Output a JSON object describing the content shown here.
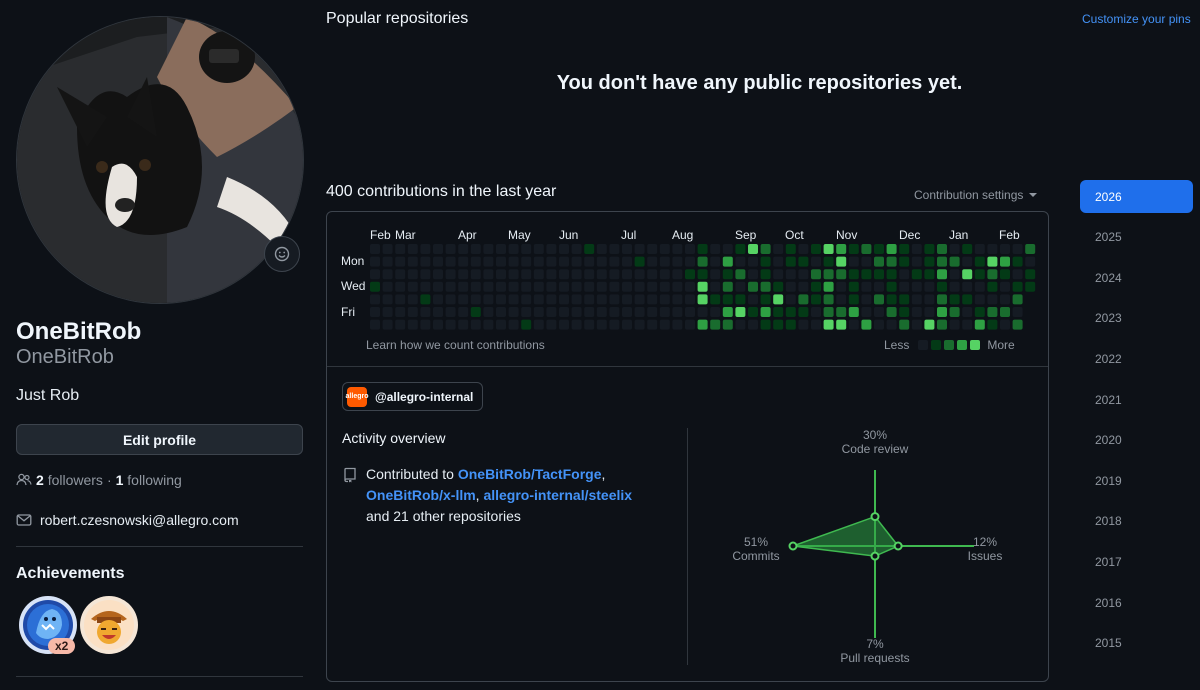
{
  "profile": {
    "display_name": "OneBitRob",
    "login": "OneBitRob",
    "bio": "Just Rob",
    "edit_label": "Edit profile",
    "followers_count": "2",
    "followers_label": "followers",
    "following_count": "1",
    "following_label": "following",
    "separator": "·",
    "email": "robert.czesnowski@allegro.com"
  },
  "achievements": {
    "title": "Achievements",
    "badges": [
      {
        "name": "pull-shark",
        "count": "x2"
      },
      {
        "name": "yolo"
      }
    ]
  },
  "repos": {
    "title": "Popular repositories",
    "customize_label": "Customize your pins",
    "empty_message": "You don't have any public repositories yet."
  },
  "contributions": {
    "title": "400 contributions in the last year",
    "settings_label": "Contribution settings",
    "months": [
      "Feb",
      "Mar",
      "Apr",
      "May",
      "Jun",
      "Jul",
      "Aug",
      "Sep",
      "Oct",
      "Nov",
      "Dec",
      "Jan",
      "Feb"
    ],
    "days": [
      "Mon",
      "Wed",
      "Fri"
    ],
    "learn_label": "Learn how we count contributions",
    "legend_less": "Less",
    "legend_more": "More",
    "colors": [
      "#151b23",
      "#033a16",
      "#196c2e",
      "#2ea043",
      "#56d364"
    ]
  },
  "org": {
    "handle": "@allegro-internal",
    "logo_text": "allegro"
  },
  "activity": {
    "title": "Activity overview",
    "contributed_prefix": "Contributed to",
    "repo1": "OneBitRob/TactForge",
    "repo2": "OneBitRob/x-llm",
    "repo3": "allegro-internal/steelix",
    "comma": ",",
    "suffix": "and 21 other repositories",
    "radar": {
      "code_review": {
        "pct": "30%",
        "label": "Code review",
        "value": 30
      },
      "issues": {
        "pct": "12%",
        "label": "Issues",
        "value": 12
      },
      "pull_requests": {
        "pct": "7%",
        "label": "Pull requests",
        "value": 7
      },
      "commits": {
        "pct": "51%",
        "label": "Commits",
        "value": 51
      }
    },
    "accent": "#3fb950"
  },
  "years": [
    "2026",
    "2025",
    "2024",
    "2023",
    "2022",
    "2021",
    "2020",
    "2019",
    "2018",
    "2017",
    "2016",
    "2015"
  ],
  "active_year": "2026"
}
